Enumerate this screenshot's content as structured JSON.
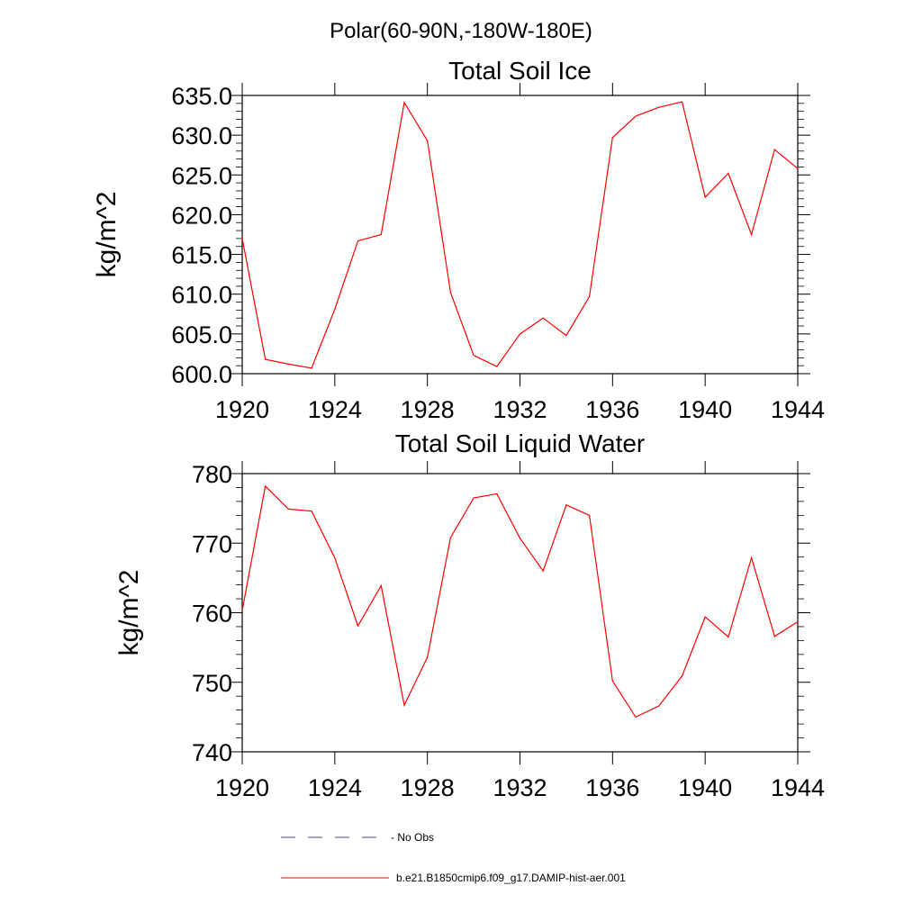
{
  "page_title": "Polar(60-90N,-180W-180E)",
  "chart_data": [
    {
      "type": "line",
      "title": "Total Soil Ice",
      "xlabel": "",
      "ylabel": "kg/m^2",
      "xlim": [
        1920,
        1944
      ],
      "ylim": [
        600,
        635
      ],
      "xticks": [
        "1920",
        "1924",
        "1928",
        "1932",
        "1936",
        "1940",
        "1944"
      ],
      "yticks": [
        "600.0",
        "605.0",
        "610.0",
        "615.0",
        "620.0",
        "625.0",
        "630.0",
        "635.0"
      ],
      "x": [
        1920,
        1921,
        1922,
        1923,
        1924,
        1925,
        1926,
        1927,
        1928,
        1929,
        1930,
        1931,
        1932,
        1933,
        1934,
        1935,
        1936,
        1937,
        1938,
        1939,
        1940,
        1941,
        1942,
        1943,
        1944
      ],
      "series": [
        {
          "name": "b.e21.B1850cmip6.f09_g17.DAMIP-hist-aer.001",
          "color": "#ff0000",
          "values": [
            617.0,
            601.8,
            601.2,
            600.7,
            608.1,
            616.7,
            617.5,
            634.1,
            629.3,
            610.2,
            602.3,
            600.9,
            605.0,
            607.0,
            604.8,
            609.7,
            629.7,
            632.4,
            633.5,
            634.2,
            622.2,
            625.2,
            617.5,
            628.2,
            625.8
          ]
        }
      ]
    },
    {
      "type": "line",
      "title": "Total Soil Liquid Water",
      "xlabel": "",
      "ylabel": "kg/m^2",
      "xlim": [
        1920,
        1944
      ],
      "ylim": [
        740,
        780
      ],
      "xticks": [
        "1920",
        "1924",
        "1928",
        "1932",
        "1936",
        "1940",
        "1944"
      ],
      "yticks": [
        "740",
        "750",
        "760",
        "770",
        "780"
      ],
      "x": [
        1920,
        1921,
        1922,
        1923,
        1924,
        1925,
        1926,
        1927,
        1928,
        1929,
        1930,
        1931,
        1932,
        1933,
        1934,
        1935,
        1936,
        1937,
        1938,
        1939,
        1940,
        1941,
        1942,
        1943,
        1944
      ],
      "series": [
        {
          "name": "b.e21.B1850cmip6.f09_g17.DAMIP-hist-aer.001",
          "color": "#ff0000",
          "values": [
            760.3,
            778.2,
            774.9,
            774.6,
            767.9,
            758.1,
            763.9,
            746.7,
            753.6,
            770.8,
            776.5,
            777.1,
            770.7,
            766.0,
            775.5,
            774.0,
            750.2,
            745.0,
            746.6,
            750.9,
            759.4,
            756.5,
            767.9,
            756.6,
            758.7
          ]
        }
      ]
    }
  ],
  "legend": [
    {
      "label": "No Obs",
      "style": "dashed",
      "color": "#4a4a8a"
    },
    {
      "label": "b.e21.B1850cmip6.f09_g17.DAMIP-hist-aer.001",
      "style": "solid",
      "color": "#ff0000"
    }
  ]
}
